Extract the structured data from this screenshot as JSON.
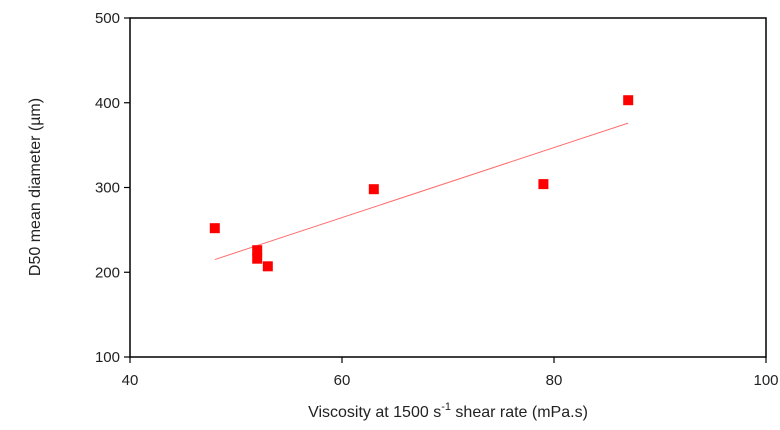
{
  "chart_data": {
    "type": "scatter",
    "xlabel_parts": {
      "before": "Viscosity at 1500 s",
      "superscript": "-1",
      "after": " shear rate (mPa.s)"
    },
    "ylabel": "D50 mean diameter (µm)",
    "xlim": [
      40,
      100
    ],
    "ylim": [
      100,
      500
    ],
    "x_ticks": [
      40,
      60,
      80,
      100
    ],
    "y_ticks": [
      100,
      200,
      300,
      400,
      500
    ],
    "grid": false,
    "marker_color": "#ff0000",
    "trendline_color": "#ff6b6b",
    "series": [
      {
        "points": [
          {
            "x": 48,
            "y": 252
          },
          {
            "x": 52,
            "y": 226
          },
          {
            "x": 52,
            "y": 216
          },
          {
            "x": 53,
            "y": 207
          },
          {
            "x": 63,
            "y": 298
          },
          {
            "x": 79,
            "y": 304
          },
          {
            "x": 87,
            "y": 403
          }
        ]
      }
    ],
    "trendline": {
      "x": [
        48,
        87
      ],
      "y": [
        215,
        376
      ]
    }
  }
}
